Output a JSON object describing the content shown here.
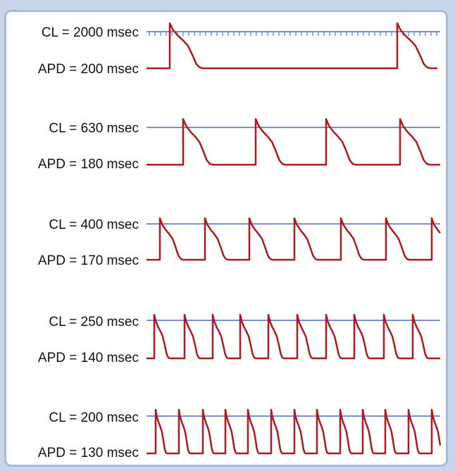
{
  "colors": {
    "background": "#c9d5ea",
    "panel": "#ffffff",
    "panel_border": "#a8b9da",
    "threshold_line": "#7a8fcf",
    "action_potential": "#b0181f",
    "text": "#111111"
  },
  "rows": [
    {
      "cl_label": "CL = 2000 msec",
      "apd_label": "APD = 200 msec",
      "cl_ms": 2000,
      "apd_ms": 200,
      "tick_marks": true
    },
    {
      "cl_label": "CL = 630 msec",
      "apd_label": "APD = 180 msec",
      "cl_ms": 630,
      "apd_ms": 180,
      "tick_marks": false
    },
    {
      "cl_label": "CL = 400 msec",
      "apd_label": "APD = 170 msec",
      "cl_ms": 400,
      "apd_ms": 170,
      "tick_marks": false
    },
    {
      "cl_label": "CL = 250 msec",
      "apd_label": "APD = 140 msec",
      "cl_ms": 250,
      "apd_ms": 140,
      "tick_marks": false
    },
    {
      "cl_label": "CL = 200 msec",
      "apd_label": "APD = 130 msec",
      "cl_ms": 200,
      "apd_ms": 130,
      "tick_marks": false
    }
  ]
}
